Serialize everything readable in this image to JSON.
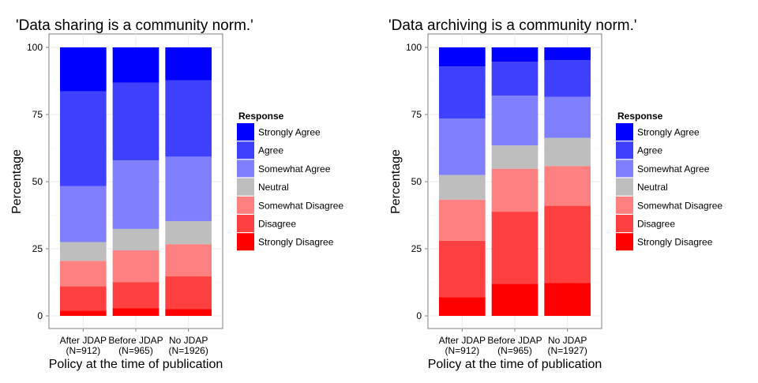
{
  "chart_data": [
    {
      "type": "bar",
      "stacked": true,
      "title": "'Data sharing is a community norm.'",
      "xlabel": "Policy at the time of publication",
      "ylabel": "Percentage",
      "ylim": [
        0,
        100
      ],
      "yticks": [
        0,
        25,
        50,
        75,
        100
      ],
      "grid": true,
      "legend_position": "right",
      "legend_title": "Response",
      "categories": [
        "After JDAP\n(N=912)",
        "Before JDAP\n(N=965)",
        "No JDAP\n(N=1926)"
      ],
      "series": [
        {
          "name": "Strongly Disagree",
          "color": "#FF0000",
          "values": [
            2.0,
            2.9,
            2.5
          ]
        },
        {
          "name": "Disagree",
          "color": "#FF4040",
          "values": [
            9.0,
            9.7,
            12.2
          ]
        },
        {
          "name": "Somewhat Disagree",
          "color": "#FF8080",
          "values": [
            9.5,
            11.8,
            12.0
          ]
        },
        {
          "name": "Neutral",
          "color": "#BEBEBE",
          "values": [
            7.0,
            8.0,
            8.6
          ]
        },
        {
          "name": "Somewhat Agree",
          "color": "#8080FF",
          "values": [
            20.8,
            25.5,
            24.0
          ]
        },
        {
          "name": "Agree",
          "color": "#4040FF",
          "values": [
            35.3,
            29.0,
            28.4
          ]
        },
        {
          "name": "Strongly Agree",
          "color": "#0000FF",
          "values": [
            16.4,
            13.1,
            12.3
          ]
        }
      ]
    },
    {
      "type": "bar",
      "stacked": true,
      "title": "'Data archiving is a community norm.'",
      "xlabel": "Policy at the time of publication",
      "ylabel": "Percentage",
      "ylim": [
        0,
        100
      ],
      "yticks": [
        0,
        25,
        50,
        75,
        100
      ],
      "grid": true,
      "legend_position": "right",
      "legend_title": "Response",
      "categories": [
        "After JDAP\n(N=912)",
        "Before JDAP\n(N=965)",
        "No JDAP\n(N=1927)"
      ],
      "series": [
        {
          "name": "Strongly Disagree",
          "color": "#FF0000",
          "values": [
            7.0,
            12.0,
            12.3
          ]
        },
        {
          "name": "Disagree",
          "color": "#FF4040",
          "values": [
            21.0,
            26.8,
            28.7
          ]
        },
        {
          "name": "Somewhat Disagree",
          "color": "#FF8080",
          "values": [
            15.3,
            16.0,
            14.8
          ]
        },
        {
          "name": "Neutral",
          "color": "#BEBEBE",
          "values": [
            9.2,
            8.7,
            10.5
          ]
        },
        {
          "name": "Somewhat Agree",
          "color": "#8080FF",
          "values": [
            21.0,
            18.5,
            15.3
          ]
        },
        {
          "name": "Agree",
          "color": "#4040FF",
          "values": [
            19.4,
            12.7,
            13.7
          ]
        },
        {
          "name": "Strongly Agree",
          "color": "#0000FF",
          "values": [
            7.1,
            5.3,
            4.7
          ]
        }
      ]
    }
  ]
}
